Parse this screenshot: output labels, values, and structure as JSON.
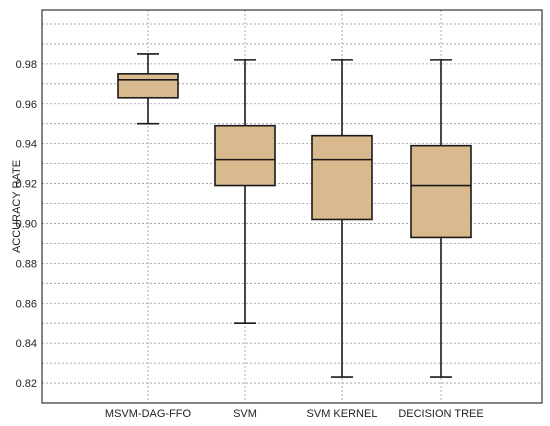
{
  "chart_data": {
    "type": "box",
    "title": "",
    "xlabel": "",
    "ylabel": "ACCURACY RATE",
    "ylim": [
      0.81,
      1.007
    ],
    "yticks": [
      "0.82",
      "0.84",
      "0.86",
      "0.88",
      "0.90",
      "0.92",
      "0.94",
      "0.96",
      "0.98"
    ],
    "grid": true,
    "colors": {
      "box_fill": "#D9B98E",
      "box_stroke": "#1a1a1a",
      "grid": "#9a9a9a",
      "frame": "#333333"
    },
    "categories": [
      "MSVM-DAG-FFO",
      "SVM",
      "SVM KERNEL",
      "DECISION TREE"
    ],
    "boxes": [
      {
        "category": "MSVM-DAG-FFO",
        "whisker_low": 0.95,
        "q1": 0.963,
        "median": 0.972,
        "q3": 0.975,
        "whisker_high": 0.985
      },
      {
        "category": "SVM",
        "whisker_low": 0.85,
        "q1": 0.919,
        "median": 0.932,
        "q3": 0.949,
        "whisker_high": 0.982
      },
      {
        "category": "SVM KERNEL",
        "whisker_low": 0.823,
        "q1": 0.902,
        "median": 0.932,
        "q3": 0.944,
        "whisker_high": 0.982
      },
      {
        "category": "DECISION TREE",
        "whisker_low": 0.823,
        "q1": 0.893,
        "median": 0.919,
        "q3": 0.939,
        "whisker_high": 0.982
      }
    ]
  }
}
